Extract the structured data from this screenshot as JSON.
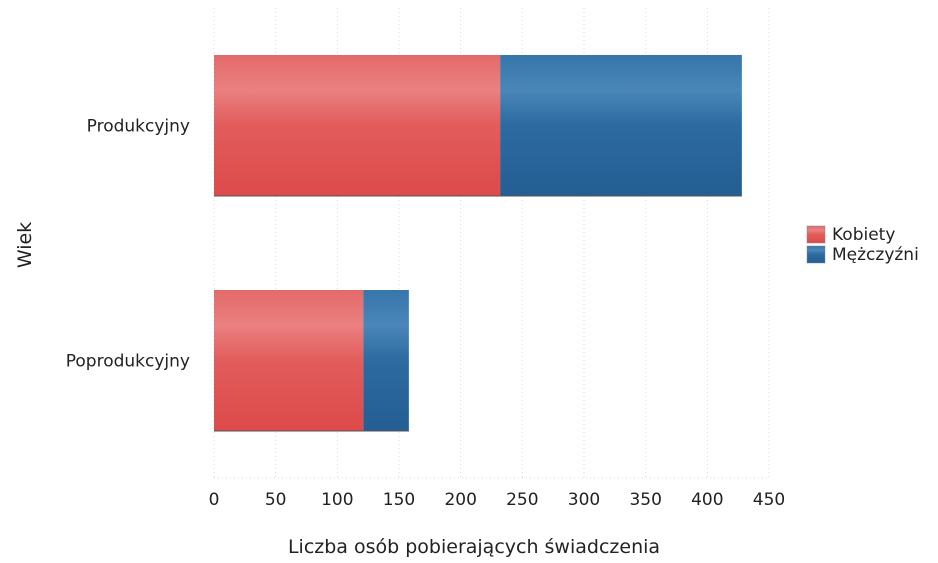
{
  "chart_data": {
    "type": "bar",
    "orientation": "horizontal",
    "stacked": true,
    "categories": [
      "Produkcyjny",
      "Poprodukcyjny"
    ],
    "series": [
      {
        "name": "Kobiety",
        "values": [
          232,
          121
        ],
        "color": "#e05555"
      },
      {
        "name": "Mężczyźni",
        "values": [
          196,
          37
        ],
        "color": "#2f6fa5"
      }
    ],
    "xlabel": "Liczba osób pobierających świadczenia",
    "ylabel": "Wiek",
    "xlim": [
      0,
      450
    ],
    "xticks": [
      0,
      50,
      100,
      150,
      200,
      250,
      300,
      350,
      400,
      450
    ],
    "grid": true,
    "legend": "right"
  }
}
